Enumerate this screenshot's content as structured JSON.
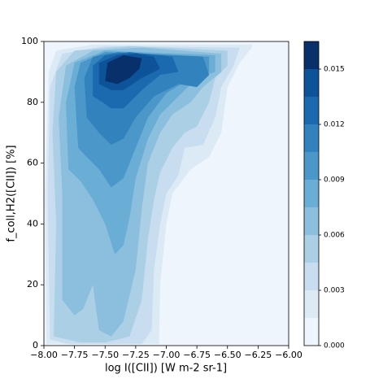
{
  "chart_data": {
    "type": "contour",
    "xlabel": "log I([CII]) [W m-2 sr-1]",
    "ylabel": "f_coll,H2([CII]) [%]",
    "xlim": [
      -8,
      -6
    ],
    "ylim": [
      0,
      100
    ],
    "xticks": [
      {
        "value": -8,
        "label": "−8.00"
      },
      {
        "value": -7.75,
        "label": "−7.75"
      },
      {
        "value": -7.5,
        "label": "−7.50"
      },
      {
        "value": -7.25,
        "label": "−7.25"
      },
      {
        "value": -7,
        "label": "−7.00"
      },
      {
        "value": -6.75,
        "label": "−6.75"
      },
      {
        "value": -6.5,
        "label": "−6.50"
      },
      {
        "value": -6.25,
        "label": "−6.25"
      },
      {
        "value": -6,
        "label": "−6.00"
      }
    ],
    "yticks": [
      0,
      20,
      40,
      60,
      80,
      100
    ],
    "levels": [
      0,
      0.0015,
      0.003,
      0.0045,
      0.006,
      0.0075,
      0.009,
      0.0105,
      0.012,
      0.0135,
      0.015
    ],
    "colors": [
      "#eef5fc",
      "#dceaf6",
      "#c8ddf0",
      "#abd0e6",
      "#8bbfdd",
      "#6aaed6",
      "#4b97c9",
      "#3282be",
      "#1b6aaf",
      "#0d539a",
      "#08306b"
    ],
    "clim": [
      0,
      0.0165
    ],
    "cticks": [
      {
        "value": 0,
        "label": "0.000"
      },
      {
        "value": 0.003,
        "label": "0.003"
      },
      {
        "value": 0.006,
        "label": "0.006"
      },
      {
        "value": 0.009,
        "label": "0.009"
      },
      {
        "value": 0.012,
        "label": "0.012"
      },
      {
        "value": 0.015,
        "label": "0.015"
      }
    ],
    "contours": [
      {
        "x": [
          -7.98,
          -7.99,
          -7.96,
          -7.9,
          -7.6,
          -6.3,
          -6.3,
          -6.4,
          -6.5,
          -6.55,
          -6.65,
          -6.8,
          -6.95,
          -7.0,
          -7.05,
          -7.06
        ],
        "y": [
          0.5,
          50,
          90,
          97,
          99,
          99,
          98,
          93,
          85,
          70,
          62,
          58,
          50,
          40,
          20,
          0.5
        ]
      },
      {
        "x": [
          -7.95,
          -7.97,
          -7.95,
          -7.85,
          -7.5,
          -6.4,
          -6.45,
          -6.55,
          -6.6,
          -6.7,
          -6.85,
          -6.9,
          -7.0,
          -7.05,
          -7.1,
          -7.12,
          -7.2,
          -7.8
        ],
        "y": [
          2,
          50,
          85,
          96,
          98.5,
          98,
          92,
          85,
          75,
          66,
          65,
          56,
          50,
          40,
          25,
          5,
          0.5,
          0.5
        ]
      },
      {
        "x": [
          -7.92,
          -7.9,
          -7.93,
          -7.9,
          -7.75,
          -7.3,
          -6.5,
          -6.5,
          -6.6,
          -6.65,
          -6.75,
          -6.85,
          -6.95,
          -7.05,
          -7.1,
          -7.15,
          -7.2,
          -7.3,
          -7.5,
          -7.7
        ],
        "y": [
          3,
          40,
          70,
          90,
          97,
          98.5,
          97,
          92,
          88,
          80,
          72,
          70,
          65,
          57,
          48,
          35,
          15,
          3,
          1,
          1
        ]
      },
      {
        "x": [
          -7.85,
          -7.85,
          -7.88,
          -7.82,
          -7.6,
          -7.2,
          -6.55,
          -6.55,
          -6.7,
          -6.8,
          -6.95,
          -7.05,
          -7.15,
          -7.2,
          -7.25,
          -7.35,
          -7.45,
          -7.55,
          -7.6,
          -7.68,
          -7.75
        ],
        "y": [
          15,
          50,
          75,
          92,
          97,
          98,
          96,
          90,
          85,
          80,
          76,
          70,
          60,
          45,
          25,
          8,
          3,
          5,
          20,
          12,
          10
        ]
      },
      {
        "x": [
          -7.8,
          -7.82,
          -7.75,
          -7.5,
          -6.6,
          -6.6,
          -6.75,
          -6.9,
          -7.05,
          -7.15,
          -7.25,
          -7.3,
          -7.35,
          -7.42,
          -7.5,
          -7.6,
          -7.7
        ],
        "y": [
          58,
          80,
          93,
          97,
          95.5,
          90,
          88,
          82,
          76,
          68,
          55,
          42,
          33,
          30,
          40,
          48,
          54
        ]
      },
      {
        "x": [
          -7.72,
          -7.75,
          -7.7,
          -7.5,
          -6.65,
          -6.65,
          -6.8,
          -7.0,
          -7.15,
          -7.25,
          -7.35,
          -7.45,
          -7.55,
          -7.65
        ],
        "y": [
          65,
          85,
          93,
          96.5,
          95,
          90,
          88,
          83,
          75,
          65,
          55,
          52,
          58,
          62
        ]
      },
      {
        "x": [
          -7.65,
          -7.67,
          -7.6,
          -7.4,
          -6.7,
          -6.65,
          -6.75,
          -6.9,
          -7.1,
          -7.25,
          -7.35,
          -7.45,
          -7.55
        ],
        "y": [
          75,
          88,
          95,
          96.5,
          95,
          89,
          85,
          86,
          82,
          75,
          68,
          66,
          70
        ]
      },
      {
        "x": [
          -7.6,
          -7.6,
          -7.5,
          -7.3,
          -6.95,
          -6.9,
          -7.05,
          -7.2,
          -7.35,
          -7.45,
          -7.52
        ],
        "y": [
          82,
          92,
          95.5,
          96.5,
          95,
          90,
          89,
          84,
          78,
          78,
          80
        ]
      },
      {
        "x": [
          -7.55,
          -7.55,
          -7.4,
          -7.25,
          -7.1,
          -7.05,
          -7.2,
          -7.35,
          -7.45
        ],
        "y": [
          86,
          93,
          95.5,
          96,
          95,
          91,
          88,
          84,
          84
        ]
      },
      {
        "x": [
          -7.5,
          -7.48,
          -7.35,
          -7.2,
          -7.22,
          -7.3,
          -7.4
        ],
        "y": [
          87,
          93,
          95.5,
          94.5,
          91,
          88,
          86
        ]
      }
    ]
  }
}
